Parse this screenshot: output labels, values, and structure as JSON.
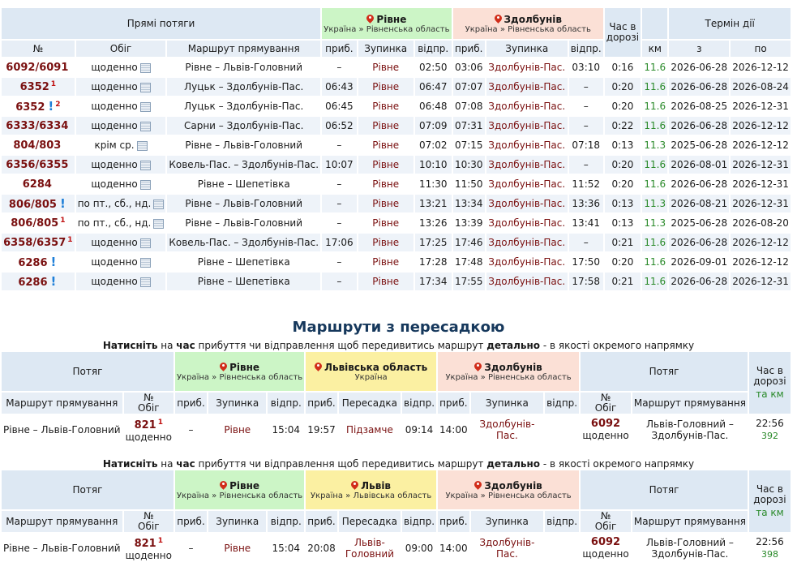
{
  "direct": {
    "header": {
      "direct_trains": "Прямі потяги",
      "from_station": {
        "name": "Рівне",
        "region": "Україна » Рівненська область"
      },
      "to_station": {
        "name": "Здолбунів",
        "region": "Україна » Рівненська область"
      },
      "travel_time": "Час в дорозі",
      "validity": "Термін дії",
      "col_num": "№",
      "col_schedule": "Обіг",
      "col_route": "Маршрут прямування",
      "col_arr": "приб.",
      "col_stop": "Зупинка",
      "col_dep": "відпр.",
      "col_km": "км",
      "col_from": "з",
      "col_to": "по"
    },
    "rows": [
      {
        "num": "6092/6091",
        "sup": "",
        "bang": false,
        "schedule": "щоденно",
        "route": "Рівне – Львів-Головний",
        "a1": "–",
        "s1": "Рівне",
        "d1": "02:50",
        "a2": "03:06",
        "s2": "Здолбунів-Пас.",
        "d2": "03:10",
        "time": "0:16",
        "km": "11.6",
        "from": "2026-06-28",
        "to": "2026-12-12"
      },
      {
        "num": "6352",
        "sup": "1",
        "bang": false,
        "schedule": "щоденно",
        "route": "Луцьк – Здолбунів-Пас.",
        "a1": "06:43",
        "s1": "Рівне",
        "d1": "06:47",
        "a2": "07:07",
        "s2": "Здолбунів-Пас.",
        "d2": "–",
        "time": "0:20",
        "km": "11.6",
        "from": "2026-06-28",
        "to": "2026-08-24"
      },
      {
        "num": "6352",
        "sup": "2",
        "bang": true,
        "schedule": "щоденно",
        "route": "Луцьк – Здолбунів-Пас.",
        "a1": "06:45",
        "s1": "Рівне",
        "d1": "06:48",
        "a2": "07:08",
        "s2": "Здолбунів-Пас.",
        "d2": "–",
        "time": "0:20",
        "km": "11.6",
        "from": "2026-08-25",
        "to": "2026-12-31"
      },
      {
        "num": "6333/6334",
        "sup": "",
        "bang": false,
        "schedule": "щоденно",
        "route": "Сарни – Здолбунів-Пас.",
        "a1": "06:52",
        "s1": "Рівне",
        "d1": "07:09",
        "a2": "07:31",
        "s2": "Здолбунів-Пас.",
        "d2": "–",
        "time": "0:22",
        "km": "11.6",
        "from": "2026-06-28",
        "to": "2026-12-12"
      },
      {
        "num": "804/803",
        "sup": "",
        "bang": false,
        "schedule": "крім ср.",
        "route": "Рівне – Львів-Головний",
        "a1": "–",
        "s1": "Рівне",
        "d1": "07:02",
        "a2": "07:15",
        "s2": "Здолбунів-Пас.",
        "d2": "07:18",
        "time": "0:13",
        "km": "11.3",
        "from": "2025-06-28",
        "to": "2026-12-12"
      },
      {
        "num": "6356/6355",
        "sup": "",
        "bang": false,
        "schedule": "щоденно",
        "route": "Ковель-Пас. – Здолбунів-Пас.",
        "a1": "10:07",
        "s1": "Рівне",
        "d1": "10:10",
        "a2": "10:30",
        "s2": "Здолбунів-Пас.",
        "d2": "–",
        "time": "0:20",
        "km": "11.6",
        "from": "2026-08-01",
        "to": "2026-12-31"
      },
      {
        "num": "6284",
        "sup": "",
        "bang": false,
        "schedule": "щоденно",
        "route": "Рівне – Шепетівка",
        "a1": "–",
        "s1": "Рівне",
        "d1": "11:30",
        "a2": "11:50",
        "s2": "Здолбунів-Пас.",
        "d2": "11:52",
        "time": "0:20",
        "km": "11.6",
        "from": "2026-06-28",
        "to": "2026-12-31"
      },
      {
        "num": "806/805",
        "sup": "",
        "bang": true,
        "schedule": "по пт., сб., нд.",
        "route": "Рівне – Львів-Головний",
        "a1": "–",
        "s1": "Рівне",
        "d1": "13:21",
        "a2": "13:34",
        "s2": "Здолбунів-Пас.",
        "d2": "13:36",
        "time": "0:13",
        "km": "11.3",
        "from": "2026-08-21",
        "to": "2026-12-31"
      },
      {
        "num": "806/805",
        "sup": "1",
        "bang": false,
        "schedule": "по пт., сб., нд.",
        "route": "Рівне – Львів-Головний",
        "a1": "–",
        "s1": "Рівне",
        "d1": "13:26",
        "a2": "13:39",
        "s2": "Здолбунів-Пас.",
        "d2": "13:41",
        "time": "0:13",
        "km": "11.3",
        "from": "2025-06-28",
        "to": "2026-08-20"
      },
      {
        "num": "6358/6357",
        "sup": "1",
        "bang": false,
        "schedule": "щоденно",
        "route": "Ковель-Пас. – Здолбунів-Пас.",
        "a1": "17:06",
        "s1": "Рівне",
        "d1": "17:25",
        "a2": "17:46",
        "s2": "Здолбунів-Пас.",
        "d2": "–",
        "time": "0:21",
        "km": "11.6",
        "from": "2026-06-28",
        "to": "2026-12-12"
      },
      {
        "num": "6286",
        "sup": "",
        "bang": true,
        "schedule": "щоденно",
        "route": "Рівне – Шепетівка",
        "a1": "–",
        "s1": "Рівне",
        "d1": "17:28",
        "a2": "17:48",
        "s2": "Здолбунів-Пас.",
        "d2": "17:50",
        "time": "0:20",
        "km": "11.6",
        "from": "2026-09-01",
        "to": "2026-12-12"
      },
      {
        "num": "6286",
        "sup": "",
        "bang": true,
        "schedule": "щоденно",
        "route": "Рівне – Шепетівка",
        "a1": "–",
        "s1": "Рівне",
        "d1": "17:34",
        "a2": "17:55",
        "s2": "Здолбунів-Пас.",
        "d2": "17:58",
        "time": "0:21",
        "km": "11.6",
        "from": "2026-06-28",
        "to": "2026-12-31"
      }
    ]
  },
  "transfers": {
    "title": "Маршрути з пересадкою",
    "hint_press": "Натисніть",
    "hint_on": " на ",
    "hint_time": "час",
    "hint_mid": " прибуття чи відправлення щоб передивитись маршрут ",
    "hint_detail": "детально",
    "hint_end": " - в якості окремого напрямку",
    "col_train": "Потяг",
    "col_route": "Маршрут прямування",
    "col_num": "№",
    "col_schedule": "Обіг",
    "col_arr": "приб.",
    "col_stop": "Зупинка",
    "col_dep": "відпр.",
    "col_transfer": "Пересадка",
    "col_time": "Час в дорозі",
    "col_km": "та км",
    "routes": [
      {
        "from": {
          "name": "Рівне",
          "region": "Україна » Рівненська область"
        },
        "mid": {
          "name": "Львівська область",
          "region": "Україна"
        },
        "to": {
          "name": "Здолбунів",
          "region": "Україна » Рівненська область"
        },
        "route1": "Рівне – Львів-Головний",
        "num1": "821",
        "sup1": "1",
        "sched1": "щоденно",
        "a1": "–",
        "s1": "Рівне",
        "d1": "15:04",
        "a2": "19:57",
        "s2": "Підзамче",
        "d2": "09:14",
        "a3": "14:00",
        "s3": "Здолбунів-Пас.",
        "d3": "",
        "num2": "6092",
        "sched2": "щоденно",
        "route2": "Львів-Головний – Здолбунів-Пас.",
        "time": "22:56",
        "km": "392"
      },
      {
        "from": {
          "name": "Рівне",
          "region": "Україна » Рівненська область"
        },
        "mid": {
          "name": "Львів",
          "region": "Україна » Львівська область"
        },
        "to": {
          "name": "Здолбунів",
          "region": "Україна » Рівненська область"
        },
        "route1": "Рівне – Львів-Головний",
        "num1": "821",
        "sup1": "1",
        "sched1": "щоденно",
        "a1": "–",
        "s1": "Рівне",
        "d1": "15:04",
        "a2": "20:08",
        "s2": "Львів-Головний",
        "d2": "09:00",
        "a3": "14:00",
        "s3": "Здолбунів-Пас.",
        "d3": "",
        "num2": "6092",
        "sched2": "щоденно",
        "route2": "Львів-Головний – Здолбунів-Пас.",
        "time": "22:56",
        "km": "398"
      }
    ]
  }
}
